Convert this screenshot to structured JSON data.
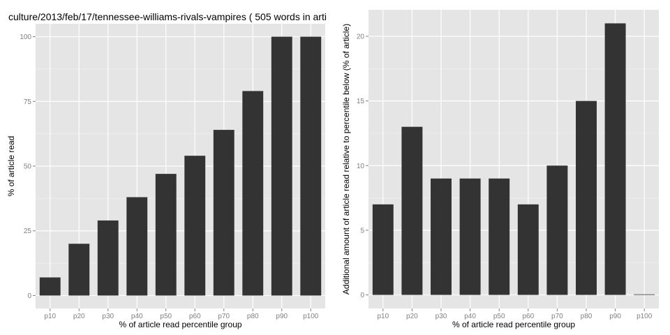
{
  "chart_data": [
    {
      "type": "bar",
      "title": "culture/2013/feb/17/tennessee-williams-rivals-vampires ( 505 words in arti",
      "xlabel": "% of article read percentile group",
      "ylabel": "% of article read",
      "categories": [
        "p10",
        "p20",
        "p30",
        "p40",
        "p50",
        "p60",
        "p70",
        "p80",
        "p90",
        "p100"
      ],
      "values": [
        7,
        20,
        29,
        38,
        47,
        54,
        64,
        79,
        100,
        100
      ],
      "ylim": [
        -5,
        105
      ],
      "yticks": [
        0,
        25,
        50,
        75,
        100
      ],
      "grid": true,
      "bar_color": "#333333",
      "panel_color": "#e5e5e5"
    },
    {
      "type": "bar",
      "title": "",
      "xlabel": "% of article read percentile group",
      "ylabel": "Additional amount of article read relative to percentile below (% of article)",
      "categories": [
        "p10",
        "p20",
        "p30",
        "p40",
        "p50",
        "p60",
        "p70",
        "p80",
        "p90",
        "p100"
      ],
      "values": [
        7,
        13,
        9,
        9,
        9,
        7,
        10,
        15,
        21,
        0
      ],
      "ylim": [
        -1.05,
        22.05
      ],
      "yticks": [
        0,
        5,
        10,
        15,
        20
      ],
      "grid": true,
      "bar_color": "#333333",
      "panel_color": "#e5e5e5"
    }
  ]
}
